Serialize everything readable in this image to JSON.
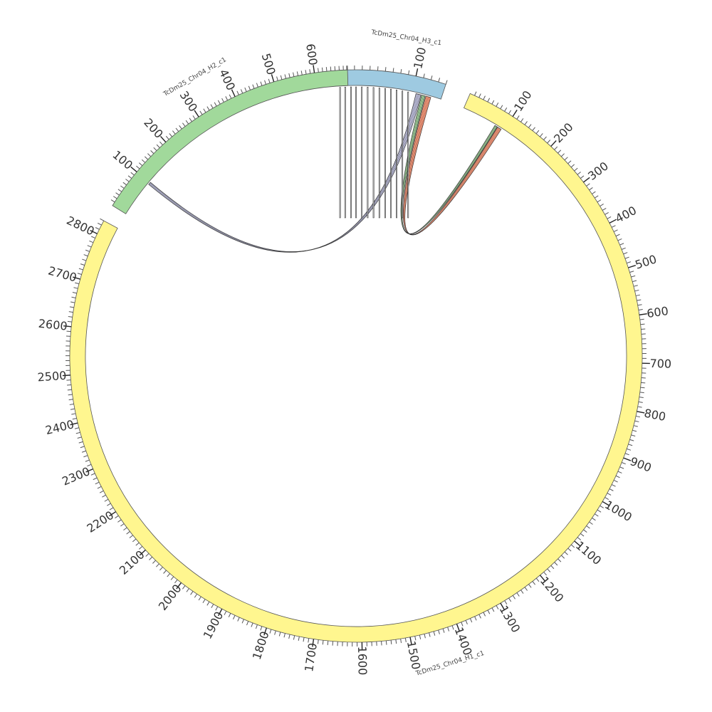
{
  "chart_data": {
    "type": "chord",
    "tick_interval": 10,
    "label_interval": 100,
    "segments": [
      {
        "id": "H3",
        "name": "TcDm25_Chr04_H3_c1",
        "length": 140,
        "color": "#9ecae1",
        "tick_labels": [
          "100"
        ]
      },
      {
        "id": "H1",
        "name": "TcDm25_Chr04_H1_c1",
        "length": 2830,
        "color": "#fff68f",
        "tick_labels": [
          "100",
          "200",
          "300",
          "400",
          "500",
          "600",
          "700",
          "800",
          "900",
          "1000",
          "1100",
          "1200",
          "1300",
          "1400",
          "1500",
          "1600",
          "1700",
          "1800",
          "1900",
          "2000",
          "2100",
          "2200",
          "2300",
          "2400",
          "2500",
          "2600",
          "2700",
          "2800"
        ]
      },
      {
        "id": "H2",
        "name": "TcDm25_Chr04_H2_c1",
        "length": 680,
        "color": "#a1d99b",
        "tick_labels": [
          "100",
          "200",
          "300",
          "400",
          "500",
          "600"
        ]
      }
    ],
    "self_links": {
      "segment": "H3",
      "positions": [
        0,
        7,
        15,
        22,
        30,
        38,
        46,
        54,
        62,
        70,
        78,
        86,
        94
      ],
      "color": "#ffffff"
    },
    "links": [
      {
        "from_segment": "H3",
        "from_pos": [
          105,
          112
        ],
        "to_segment": "H2",
        "to_pos": [
          102,
          95
        ],
        "color": "#bcbddc"
      },
      {
        "from_segment": "H3",
        "from_pos": [
          113,
          118
        ],
        "to_segment": "H1",
        "to_pos": [
          78,
          84
        ],
        "color": "#a1d99b"
      },
      {
        "from_segment": "H3",
        "from_pos": [
          119,
          126
        ],
        "to_segment": "H1",
        "to_pos": [
          85,
          94
        ],
        "color": "#fc9272"
      }
    ]
  }
}
